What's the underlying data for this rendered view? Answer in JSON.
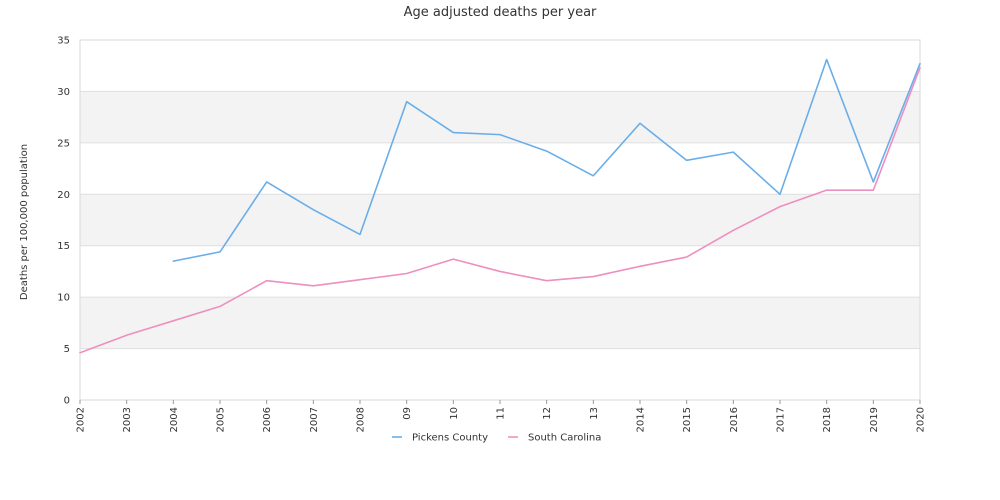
{
  "chart_data": {
    "type": "line",
    "title": "Age adjusted deaths per year",
    "ylabel": "Deaths per 100,000 population",
    "xlabel": "",
    "categories": [
      "2002",
      "2003",
      "2004",
      "2005",
      "2006",
      "2007",
      "2008",
      "09",
      "10",
      "11",
      "12",
      "13",
      "2014",
      "2015",
      "2016",
      "2017",
      "2018",
      "2019",
      "2020"
    ],
    "ylim": [
      0,
      35
    ],
    "yticks": [
      0,
      5,
      10,
      15,
      20,
      25,
      30,
      35
    ],
    "grid": true,
    "banded_background": true,
    "legend_position": "bottom",
    "series": [
      {
        "name": "Pickens County",
        "color": "#6aaee9",
        "values": [
          null,
          null,
          13.5,
          14.4,
          21.2,
          18.5,
          16.1,
          29.0,
          26.0,
          25.8,
          24.2,
          21.8,
          26.9,
          23.3,
          24.1,
          20.0,
          33.1,
          21.2,
          32.7
        ]
      },
      {
        "name": "South Carolina",
        "color": "#ee8fc0",
        "values": [
          4.6,
          6.3,
          7.7,
          9.1,
          11.6,
          11.1,
          11.7,
          12.3,
          13.7,
          12.5,
          11.6,
          12.0,
          13.0,
          13.9,
          16.5,
          18.8,
          20.4,
          20.4,
          32.3
        ]
      }
    ]
  }
}
